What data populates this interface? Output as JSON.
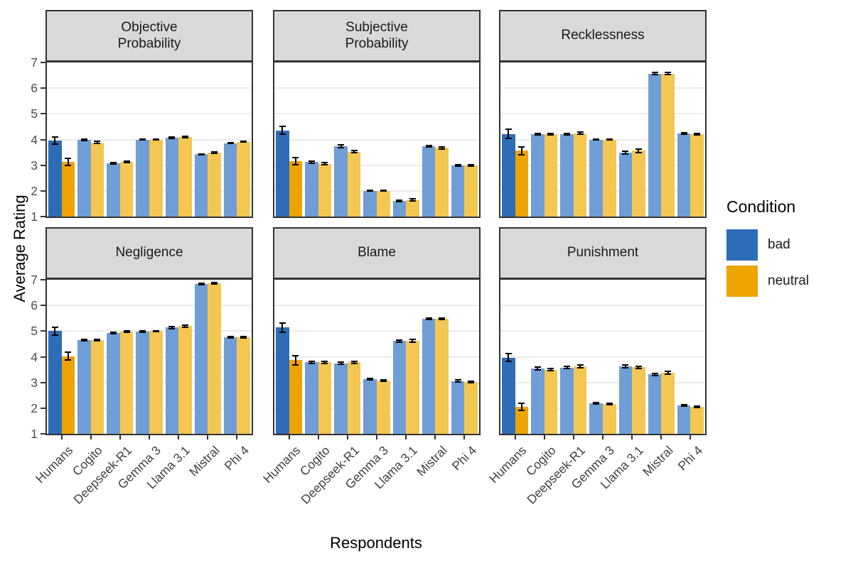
{
  "chart_data": {
    "type": "bar",
    "title": "",
    "xlabel": "Respondents",
    "ylabel": "Average Rating",
    "categories": [
      "Humans",
      "Cogito",
      "Deepseek-R1",
      "Gemma 3",
      "Llama 3.1",
      "Mistral",
      "Phi 4"
    ],
    "conditions": [
      "bad",
      "neutral"
    ],
    "highlight_category": "Humans",
    "ylim": [
      1,
      7
    ],
    "yticks": [
      1,
      2,
      3,
      4,
      5,
      6,
      7
    ],
    "grid": "horizontal-major",
    "legend_position": "right",
    "colors": {
      "bad": "#2D6CB6",
      "neutral": "#EDA400",
      "bad_light": "#6F9ED6",
      "neutral_light": "#F4C652",
      "strip_bg": "#D9D9D9",
      "panel_border": "#333333",
      "gridline": "#EBEBEB",
      "tick_text": "#4D4D4D"
    },
    "facets": [
      {
        "title": "Objective\nProbability",
        "series": [
          {
            "name": "bad",
            "values": [
              3.95,
              3.98,
              3.08,
              4.0,
              4.06,
              3.42,
              3.86
            ],
            "errors": [
              0.14,
              0.03,
              0.03,
              0.01,
              0.03,
              0.02,
              0.02
            ]
          },
          {
            "name": "neutral",
            "values": [
              3.13,
              3.88,
              3.13,
              4.0,
              4.1,
              3.49,
              3.91
            ],
            "errors": [
              0.15,
              0.04,
              0.03,
              0.01,
              0.03,
              0.02,
              0.02
            ]
          }
        ]
      },
      {
        "title": "Subjective\nProbability",
        "series": [
          {
            "name": "bad",
            "values": [
              4.35,
              3.12,
              3.73,
              2.0,
              1.6,
              3.74,
              3.0
            ],
            "errors": [
              0.15,
              0.04,
              0.05,
              0.01,
              0.03,
              0.03,
              0.03
            ]
          },
          {
            "name": "neutral",
            "values": [
              3.15,
              3.05,
              3.53,
              2.0,
              1.64,
              3.67,
              2.99
            ],
            "errors": [
              0.14,
              0.04,
              0.05,
              0.01,
              0.04,
              0.03,
              0.03
            ]
          }
        ]
      },
      {
        "title": "Recklessness",
        "series": [
          {
            "name": "bad",
            "values": [
              4.22,
              4.2,
              4.2,
              4.0,
              3.48,
              6.57,
              4.24
            ],
            "errors": [
              0.17,
              0.03,
              0.03,
              0.01,
              0.05,
              0.03,
              0.03
            ]
          },
          {
            "name": "neutral",
            "values": [
              3.56,
              4.2,
              4.24,
              4.0,
              3.56,
              6.57,
              4.2
            ],
            "errors": [
              0.16,
              0.03,
              0.04,
              0.01,
              0.06,
              0.03,
              0.03
            ]
          }
        ]
      },
      {
        "title": "Negligence",
        "series": [
          {
            "name": "bad",
            "values": [
              5.0,
              4.64,
              4.93,
              4.98,
              5.14,
              6.84,
              4.76
            ],
            "errors": [
              0.16,
              0.03,
              0.03,
              0.02,
              0.04,
              0.02,
              0.03
            ]
          },
          {
            "name": "neutral",
            "values": [
              4.02,
              4.65,
              4.98,
              5.0,
              5.19,
              6.86,
              4.77
            ],
            "errors": [
              0.15,
              0.03,
              0.03,
              0.02,
              0.04,
              0.02,
              0.03
            ]
          }
        ]
      },
      {
        "title": "Blame",
        "series": [
          {
            "name": "bad",
            "values": [
              5.14,
              3.79,
              3.74,
              3.14,
              4.62,
              5.48,
              3.06
            ],
            "errors": [
              0.18,
              0.04,
              0.04,
              0.03,
              0.04,
              0.04,
              0.03
            ]
          },
          {
            "name": "neutral",
            "values": [
              3.87,
              3.79,
              3.79,
              3.08,
              4.62,
              5.49,
              3.02
            ],
            "errors": [
              0.18,
              0.04,
              0.04,
              0.03,
              0.05,
              0.03,
              0.03
            ]
          }
        ]
      },
      {
        "title": "Punishment",
        "series": [
          {
            "name": "bad",
            "values": [
              3.97,
              3.55,
              3.58,
              2.2,
              3.63,
              3.31,
              2.1
            ],
            "errors": [
              0.16,
              0.05,
              0.05,
              0.03,
              0.05,
              0.05,
              0.03
            ]
          },
          {
            "name": "neutral",
            "values": [
              2.05,
              3.5,
              3.63,
              2.16,
              3.59,
              3.38,
              2.06
            ],
            "errors": [
              0.13,
              0.04,
              0.05,
              0.03,
              0.05,
              0.05,
              0.03
            ]
          }
        ]
      }
    ],
    "legend": {
      "title": "Condition",
      "items": [
        {
          "label": "bad",
          "color": "#2D6CB6"
        },
        {
          "label": "neutral",
          "color": "#EDA400"
        }
      ]
    }
  }
}
